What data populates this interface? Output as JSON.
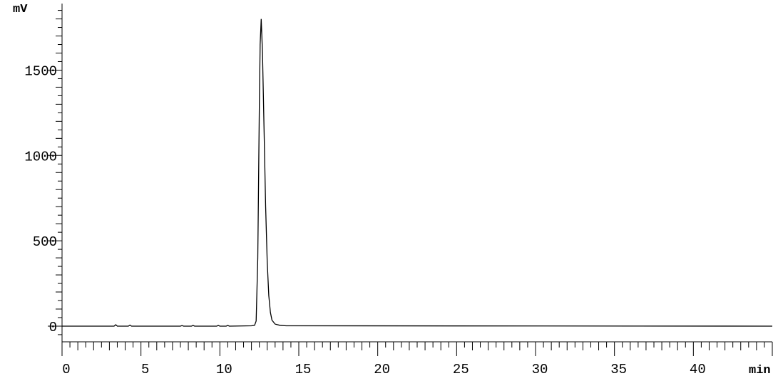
{
  "chart_data": {
    "type": "line",
    "xlabel": "min",
    "ylabel": "mV",
    "xlim": [
      0,
      45
    ],
    "ylim": [
      -92,
      1890
    ],
    "x_ticks": [
      0,
      5,
      10,
      15,
      20,
      25,
      30,
      35,
      40
    ],
    "x_tick_labels": [
      "0",
      "5",
      "10",
      "15",
      "20",
      "25",
      "30",
      "35",
      "40"
    ],
    "y_ticks": [
      0,
      500,
      1000,
      1500
    ],
    "y_tick_labels": [
      "0",
      "500",
      "1000",
      "1500"
    ],
    "grid": false,
    "line_color": "#000000",
    "series": [
      {
        "x": [
          0,
          3.3,
          3.4,
          3.5,
          4.2,
          4.3,
          4.4,
          7.5,
          7.6,
          7.7,
          8.2,
          8.3,
          8.4,
          9.8,
          9.9,
          10.0,
          10.4,
          10.5,
          10.6,
          12.0,
          12.2,
          12.3,
          12.4,
          12.5,
          12.55,
          12.62,
          12.7,
          12.8,
          12.9,
          13.0,
          13.1,
          13.2,
          13.3,
          13.5,
          13.8,
          14.2,
          45
        ],
        "y": [
          0,
          0,
          8,
          0,
          0,
          6,
          0,
          0,
          3,
          0,
          0,
          4,
          0,
          0,
          4,
          0,
          0,
          4,
          0,
          2,
          5,
          30,
          400,
          1300,
          1650,
          1800,
          1600,
          1150,
          700,
          380,
          180,
          80,
          35,
          12,
          5,
          2,
          0
        ]
      }
    ]
  }
}
